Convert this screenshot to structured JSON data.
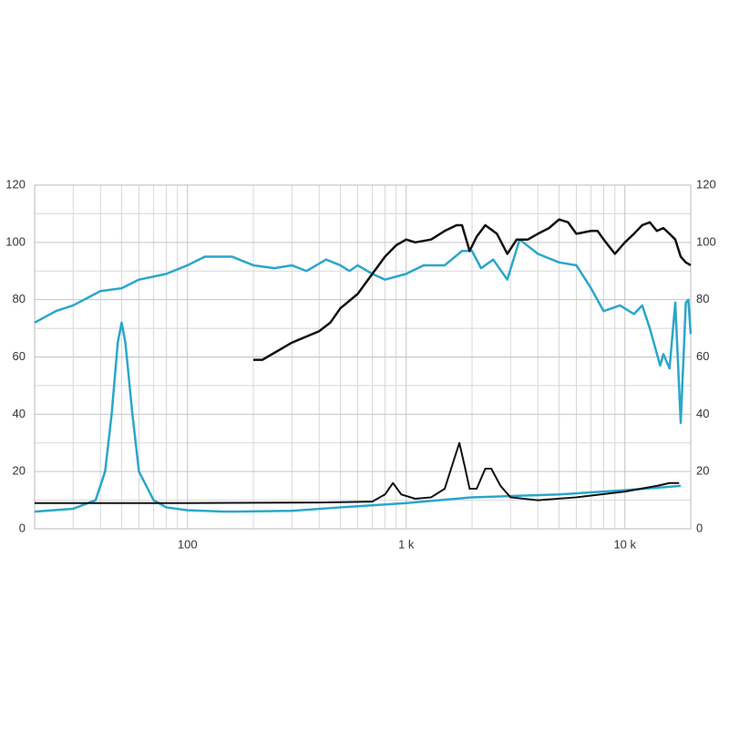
{
  "chart_data": {
    "type": "line",
    "log_x": true,
    "grid": true,
    "xlim": [
      20,
      20000
    ],
    "xticks": [
      100,
      {
        "value": 1000,
        "label": "1 k"
      },
      {
        "value": 10000,
        "label": "10 k"
      }
    ],
    "xminor": [
      30,
      40,
      50,
      60,
      70,
      80,
      90,
      200,
      300,
      400,
      500,
      600,
      700,
      800,
      900,
      2000,
      3000,
      4000,
      5000,
      6000,
      7000,
      8000,
      9000
    ],
    "ylim": [
      0,
      120
    ],
    "yticks": [
      0,
      20,
      40,
      60,
      80,
      100,
      120
    ],
    "yminor": [
      10,
      30,
      50,
      70,
      90,
      110
    ],
    "y2lim": [
      0,
      120
    ],
    "y2ticks": [
      0,
      20,
      40,
      60,
      80,
      100,
      120
    ],
    "series": [
      {
        "color": "#2aa6cc",
        "width": 2.5,
        "x": [
          20,
          25,
          30,
          40,
          50,
          60,
          80,
          100,
          120,
          160,
          200,
          250,
          300,
          350,
          430,
          500,
          550,
          600,
          700,
          800,
          1000,
          1200,
          1500,
          1800,
          2000,
          2200,
          2500,
          2900,
          3300,
          4000,
          5000,
          6000,
          7000,
          8000,
          9500,
          11000,
          12000,
          13000,
          14500,
          15000,
          16000,
          17000,
          18000,
          19000,
          19500,
          20000
        ],
        "values": [
          72,
          76,
          78,
          83,
          84,
          87,
          89,
          92,
          95,
          95,
          92,
          91,
          92,
          90,
          94,
          92,
          90,
          92,
          89,
          87,
          89,
          92,
          92,
          97,
          97,
          91,
          94,
          87,
          101,
          96,
          93,
          92,
          84,
          76,
          78,
          75,
          78,
          70,
          57,
          61,
          56,
          79,
          37,
          79,
          80,
          68
        ]
      },
      {
        "color": "#111111",
        "width": 2.5,
        "x": [
          200,
          220,
          300,
          400,
          450,
          500,
          600,
          700,
          800,
          900,
          1000,
          1100,
          1300,
          1500,
          1700,
          1800,
          1950,
          2100,
          2300,
          2600,
          2900,
          3200,
          3600,
          4000,
          4500,
          5000,
          5500,
          6000,
          7000,
          7500,
          8000,
          9000,
          10000,
          11000,
          12000,
          13000,
          14000,
          15000,
          16000,
          17000,
          18000,
          19000,
          20000
        ],
        "values": [
          59,
          59,
          65,
          69,
          72,
          77,
          82,
          89,
          95,
          99,
          101,
          100,
          101,
          104,
          106,
          106,
          97,
          102,
          106,
          103,
          96,
          101,
          101,
          103,
          105,
          108,
          107,
          103,
          104,
          104,
          101,
          96,
          100,
          103,
          106,
          107,
          104,
          105,
          103,
          101,
          95,
          93,
          92
        ]
      },
      {
        "color": "#2aa6cc",
        "width": 2.5,
        "x": [
          20,
          30,
          38,
          42,
          45,
          48,
          50,
          52,
          56,
          60,
          70,
          80,
          100,
          150,
          300,
          500,
          1000,
          2000,
          5000,
          10000,
          18000
        ],
        "values": [
          6,
          7,
          10,
          20,
          40,
          65,
          72,
          65,
          40,
          20,
          10,
          7.5,
          6.5,
          6,
          6.3,
          7.5,
          9,
          11,
          12,
          13.5,
          15
        ]
      },
      {
        "color": "#111111",
        "width": 2,
        "x": [
          20,
          100,
          400,
          700,
          800,
          870,
          950,
          1100,
          1300,
          1500,
          1700,
          1750,
          1850,
          1950,
          2100,
          2300,
          2450,
          2700,
          3000,
          4000,
          6000,
          10000,
          14000,
          16000,
          17700
        ],
        "values": [
          9,
          9,
          9.2,
          9.5,
          12,
          16,
          12,
          10.5,
          11,
          14,
          27,
          30,
          22,
          14,
          14,
          21,
          21,
          15,
          11,
          10,
          11,
          13,
          15,
          16,
          16
        ]
      }
    ]
  }
}
